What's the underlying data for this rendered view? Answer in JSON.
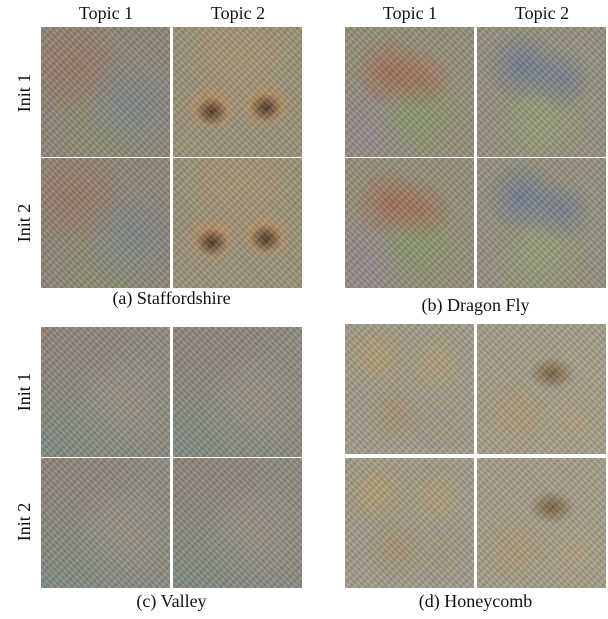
{
  "panels": [
    {
      "caption": "(a) Staffordshire",
      "col_labels": [
        "Topic 1",
        "Topic 2"
      ],
      "row_labels": [
        "Init 1",
        "Init 2"
      ],
      "tiles": [
        "staffordshire-init1-topic1",
        "staffordshire-init1-topic2",
        "staffordshire-init2-topic1",
        "staffordshire-init2-topic2"
      ]
    },
    {
      "caption": "(b) Dragon Fly",
      "col_labels": [
        "Topic 1",
        "Topic 2"
      ],
      "row_labels": [],
      "tiles": [
        "dragonfly-init1-topic1",
        "dragonfly-init1-topic2",
        "dragonfly-init2-topic1",
        "dragonfly-init2-topic2"
      ]
    },
    {
      "caption": "(c) Valley",
      "col_labels": [],
      "row_labels": [
        "Init 1",
        "Init 2"
      ],
      "tiles": [
        "valley-init1-topic1",
        "valley-init1-topic2",
        "valley-init2-topic1",
        "valley-init2-topic2"
      ]
    },
    {
      "caption": "(d) Honeycomb",
      "col_labels": [],
      "row_labels": [],
      "tiles": [
        "honeycomb-init1-topic1",
        "honeycomb-init1-topic2",
        "honeycomb-init2-topic1",
        "honeycomb-init2-topic2"
      ]
    }
  ]
}
